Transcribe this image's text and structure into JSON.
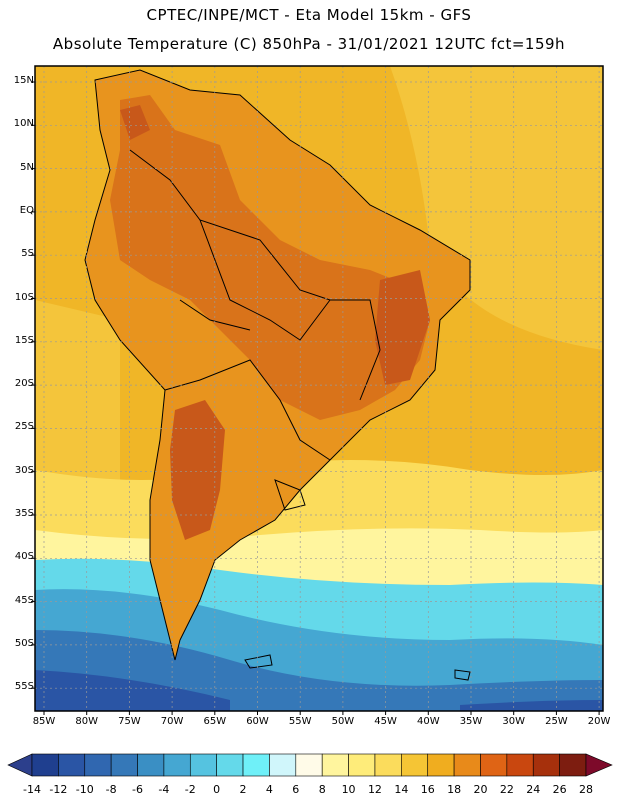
{
  "header": {
    "line1": "CPTEC/INPE/MCT -  Eta Model 15km - GFS",
    "line2": "Absolute Temperature (C) 850hPa - 31/01/2021 12UTC fct=159h"
  },
  "axes": {
    "lat_labels": [
      "15N",
      "10N",
      "5N",
      "EQ",
      "5S",
      "10S",
      "15S",
      "20S",
      "25S",
      "30S",
      "35S",
      "40S",
      "45S",
      "50S",
      "55S"
    ],
    "lon_labels": [
      "85W",
      "80W",
      "75W",
      "70W",
      "65W",
      "60W",
      "55W",
      "50W",
      "45W",
      "40W",
      "35W",
      "30W",
      "25W",
      "20W"
    ]
  },
  "colorbar": {
    "labels": [
      "-14",
      "-12",
      "-10",
      "-8",
      "-6",
      "-4",
      "-2",
      "0",
      "2",
      "4",
      "6",
      "8",
      "10",
      "12",
      "14",
      "16",
      "18",
      "20",
      "22",
      "24",
      "26",
      "28"
    ],
    "colors": [
      "#1f3f8f",
      "#2a55a5",
      "#3067b0",
      "#3578b8",
      "#3a8fc4",
      "#45a7d2",
      "#55c3e0",
      "#64d9ea",
      "#6ff0f8",
      "#d0f6fb",
      "#fffbe8",
      "#fff59e",
      "#feec7a",
      "#fbdc5c",
      "#f5c535",
      "#f0ad1f",
      "#e88a1a",
      "#df6415",
      "#c9470f",
      "#a6300c",
      "#7d1d10"
    ],
    "low_color": "#2c3f8c",
    "high_color": "#7d0a2a"
  },
  "map_colors": {
    "ocean_tropical": "#f0b627",
    "ocean_warm": "#f4c53b",
    "land_warm": "#e8941e",
    "land_hot": "#d9731a",
    "land_very_hot": "#c8581a",
    "mid_lat": "#fbdc5c",
    "cool_band": "#fff59e",
    "cold_1": "#64d9ea",
    "cold_2": "#45a7d2",
    "cold_3": "#3578b8",
    "cold_4": "#2a55a5"
  }
}
